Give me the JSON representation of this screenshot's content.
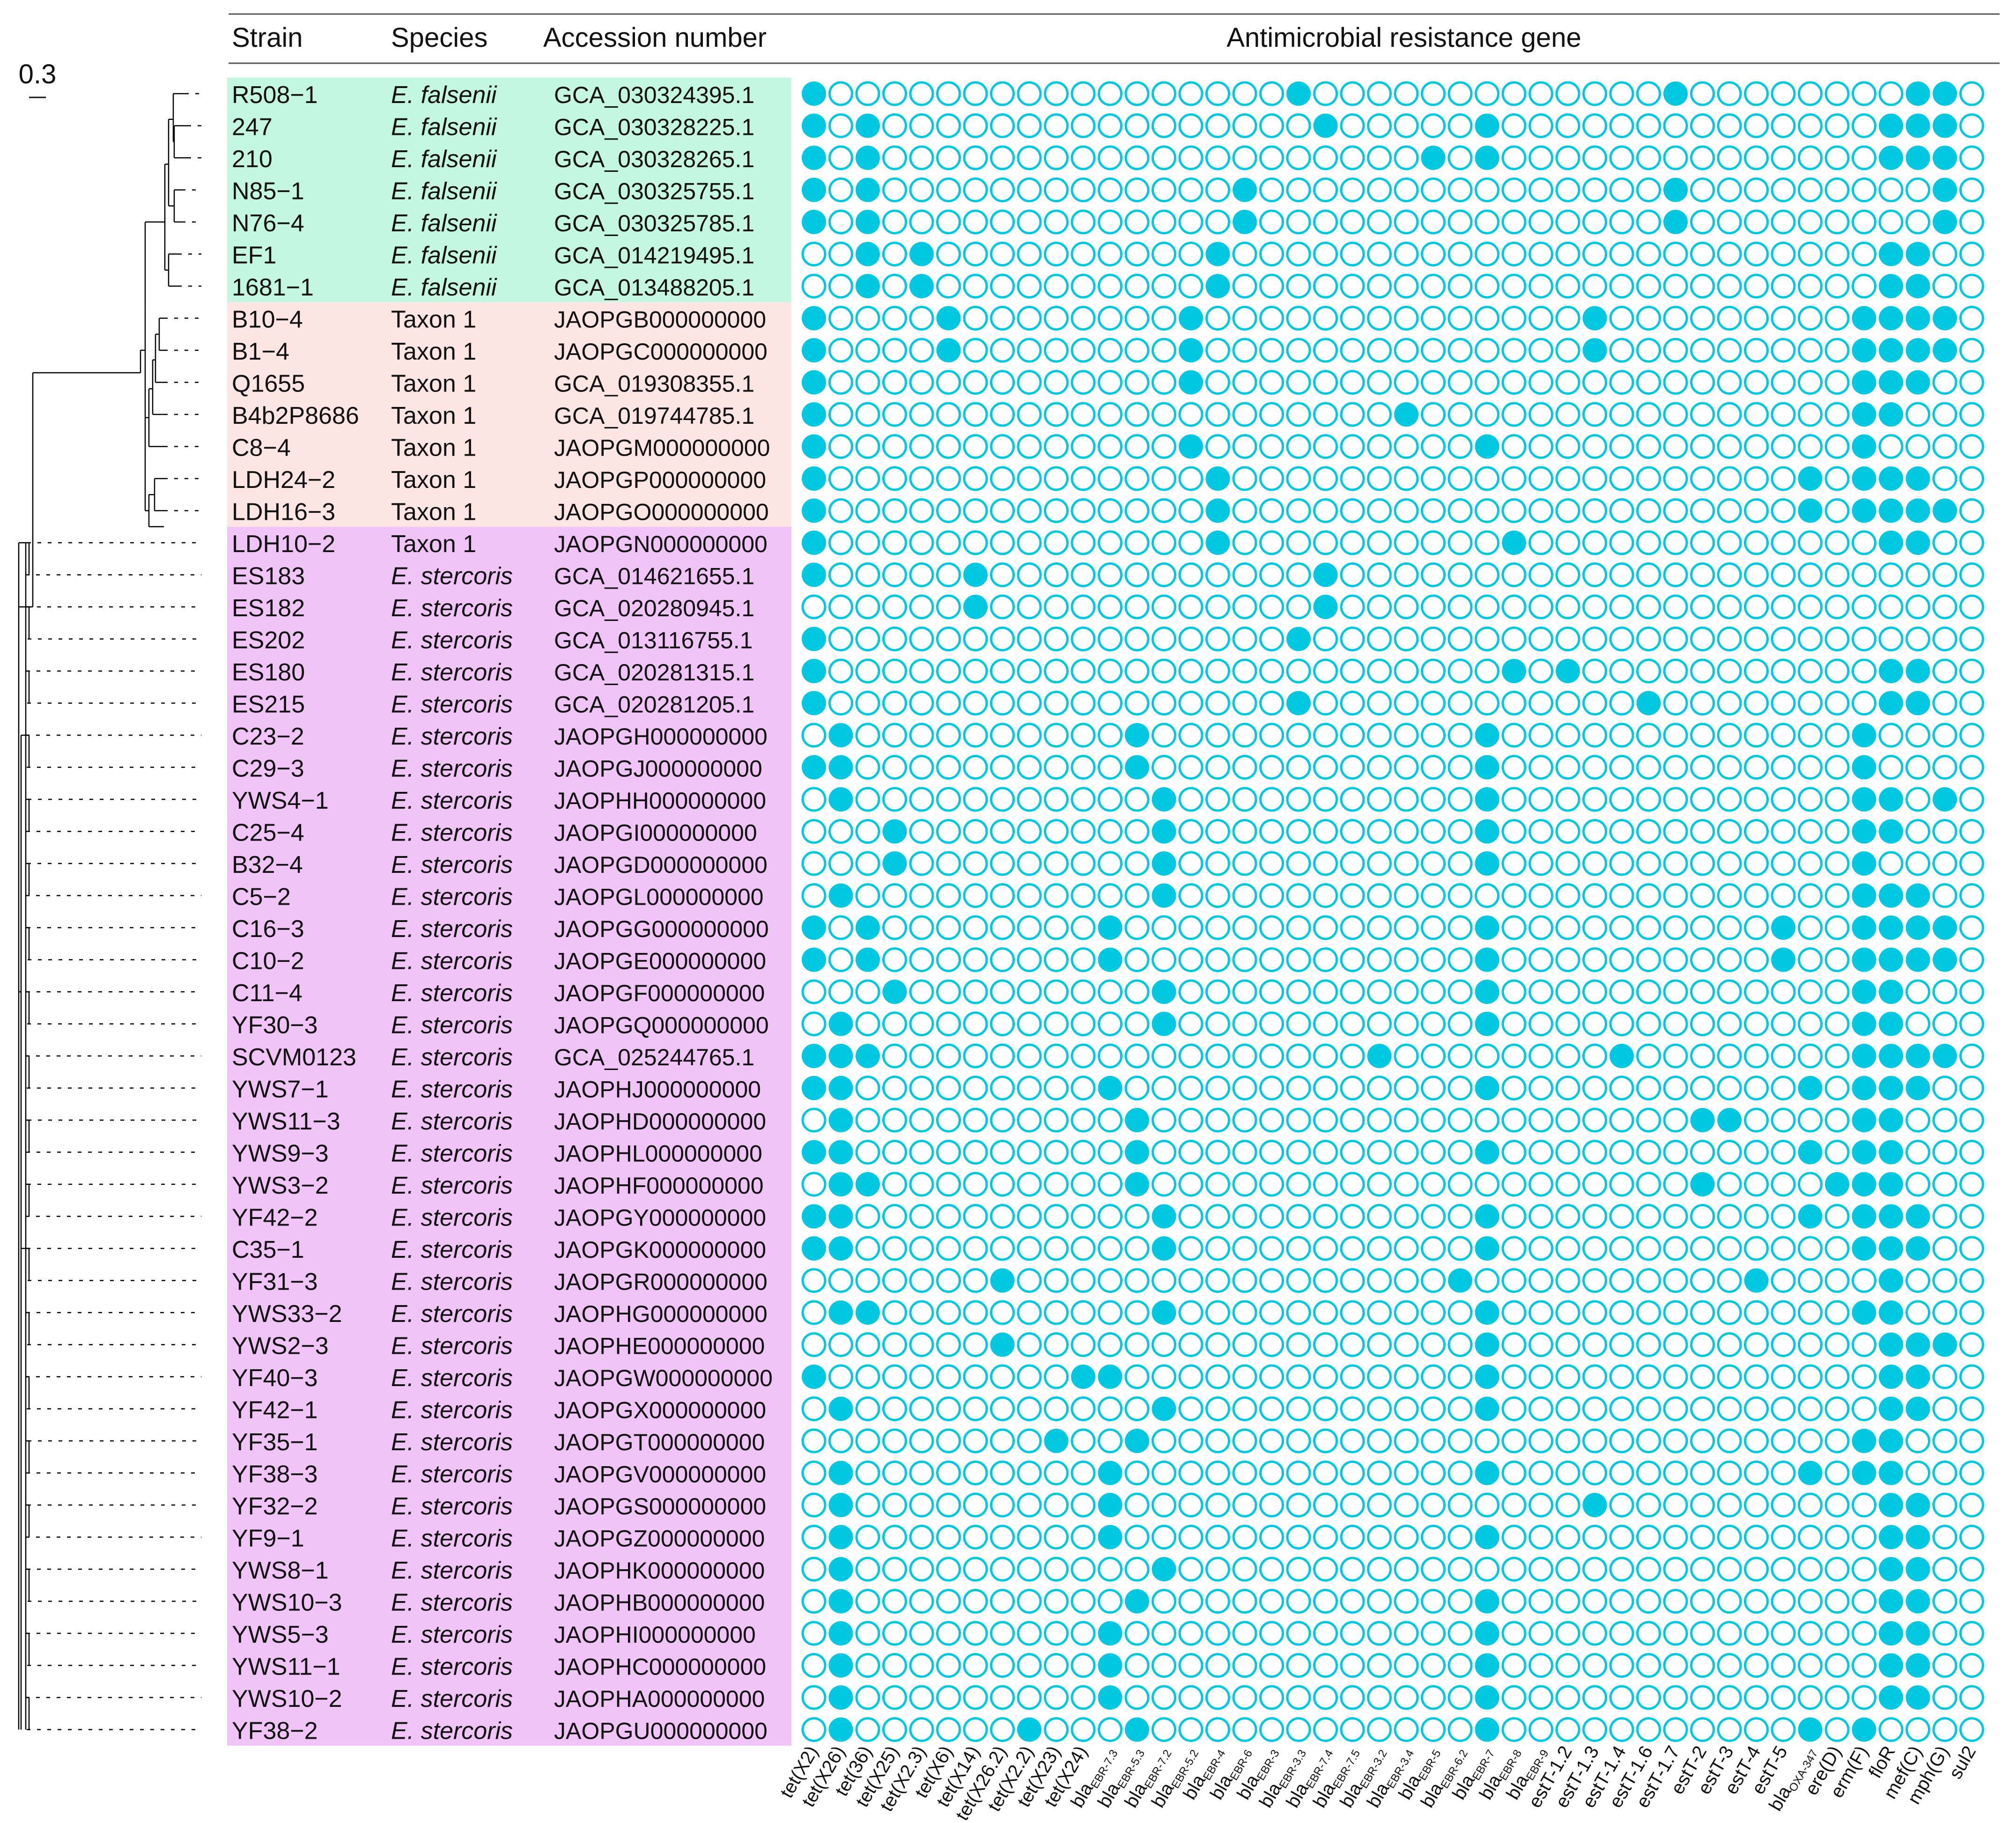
{
  "figure": {
    "scale_label": "0.3",
    "headers": {
      "strain": "Strain",
      "species": "Species",
      "accession": "Accession number",
      "genes": "Antimicrobial resistance gene"
    },
    "colors": {
      "filled": "#00C8E0",
      "ring": "#00C8E0",
      "falsenii_bg": "#C4F7E2",
      "taxon1_bg": "#FDE5E3",
      "stercoris_bg": "#F0C4F7",
      "tree": "#000000"
    },
    "genes": [
      {
        "pre": "tet(X2)",
        "sub": ""
      },
      {
        "pre": "tet(X26)",
        "sub": ""
      },
      {
        "pre": "tet(36)",
        "sub": ""
      },
      {
        "pre": "tet(X25)",
        "sub": ""
      },
      {
        "pre": "tet(X2.3)",
        "sub": ""
      },
      {
        "pre": "tet(X6)",
        "sub": ""
      },
      {
        "pre": "tet(X14)",
        "sub": ""
      },
      {
        "pre": "tet(X26.2)",
        "sub": ""
      },
      {
        "pre": "tet(X2.2)",
        "sub": ""
      },
      {
        "pre": "tet(X23)",
        "sub": ""
      },
      {
        "pre": "tet(X24)",
        "sub": ""
      },
      {
        "pre": "bla",
        "sub": "EBR-7.3"
      },
      {
        "pre": "bla",
        "sub": "EBR-5.3"
      },
      {
        "pre": "bla",
        "sub": "EBR-7.2"
      },
      {
        "pre": "bla",
        "sub": "EBR-5.2"
      },
      {
        "pre": "bla",
        "sub": "EBR-4"
      },
      {
        "pre": "bla",
        "sub": "EBR-6"
      },
      {
        "pre": "bla",
        "sub": "EBR-3"
      },
      {
        "pre": "bla",
        "sub": "EBR-3.3"
      },
      {
        "pre": "bla",
        "sub": "EBR-7.4"
      },
      {
        "pre": "bla",
        "sub": "EBR-7.5"
      },
      {
        "pre": "bla",
        "sub": "EBR-3.2"
      },
      {
        "pre": "bla",
        "sub": "EBR-3.4"
      },
      {
        "pre": "bla",
        "sub": "EBR-5"
      },
      {
        "pre": "bla",
        "sub": "EBR-6.2"
      },
      {
        "pre": "bla",
        "sub": "EBR-7"
      },
      {
        "pre": "bla",
        "sub": "EBR-8"
      },
      {
        "pre": "bla",
        "sub": "EBR-9"
      },
      {
        "pre": "estT-1.2",
        "sub": ""
      },
      {
        "pre": "estT-1.3",
        "sub": ""
      },
      {
        "pre": "estT-1.4",
        "sub": ""
      },
      {
        "pre": "estT-1.6",
        "sub": ""
      },
      {
        "pre": "estT-1.7",
        "sub": ""
      },
      {
        "pre": "estT-2",
        "sub": ""
      },
      {
        "pre": "estT-3",
        "sub": ""
      },
      {
        "pre": "estT-4",
        "sub": ""
      },
      {
        "pre": "estT-5",
        "sub": ""
      },
      {
        "pre": "bla",
        "sub": "OXA-347"
      },
      {
        "pre": "ere(D)",
        "sub": ""
      },
      {
        "pre": "erm(F)",
        "sub": ""
      },
      {
        "pre": "floR",
        "sub": ""
      },
      {
        "pre": "mef(C)",
        "sub": ""
      },
      {
        "pre": "mph(G)",
        "sub": ""
      },
      {
        "pre": "sul2",
        "sub": ""
      }
    ],
    "groups": [
      {
        "name": "falsenii",
        "first": 0,
        "last": 6
      },
      {
        "name": "taxon1",
        "first": 7,
        "last": 13
      },
      {
        "name": "stercoris",
        "first": 14,
        "last": 51
      }
    ],
    "rows": [
      {
        "strain": "R508−1",
        "species": "E. falsenii",
        "italic": true,
        "group": "falsenii",
        "acc": "GCA_030324395.1",
        "genes": [
          0,
          18,
          32,
          41,
          42
        ]
      },
      {
        "strain": "247",
        "species": "E. falsenii",
        "italic": true,
        "group": "falsenii",
        "acc": "GCA_030328225.1",
        "genes": [
          0,
          2,
          19,
          25,
          40,
          41,
          42
        ]
      },
      {
        "strain": "210",
        "species": "E. falsenii",
        "italic": true,
        "group": "falsenii",
        "acc": "GCA_030328265.1",
        "genes": [
          0,
          2,
          23,
          25,
          40,
          41,
          42
        ]
      },
      {
        "strain": "N85−1",
        "species": "E. falsenii",
        "italic": true,
        "group": "falsenii",
        "acc": "GCA_030325755.1",
        "genes": [
          0,
          2,
          16,
          32,
          42
        ]
      },
      {
        "strain": "N76−4",
        "species": "E. falsenii",
        "italic": true,
        "group": "falsenii",
        "acc": "GCA_030325785.1",
        "genes": [
          0,
          2,
          16,
          32,
          42
        ]
      },
      {
        "strain": "EF1",
        "species": "E. falsenii",
        "italic": true,
        "group": "falsenii",
        "acc": "GCA_014219495.1",
        "genes": [
          2,
          4,
          15,
          40,
          41
        ]
      },
      {
        "strain": "1681−1",
        "species": "E. falsenii",
        "italic": true,
        "group": "falsenii",
        "acc": "GCA_013488205.1",
        "genes": [
          2,
          4,
          15,
          40,
          41
        ]
      },
      {
        "strain": "B10−4",
        "species": "Taxon 1",
        "italic": false,
        "group": "taxon1",
        "acc": "JAOPGB000000000",
        "genes": [
          0,
          5,
          14,
          29,
          39,
          40,
          41,
          42
        ]
      },
      {
        "strain": "B1−4",
        "species": "Taxon 1",
        "italic": false,
        "group": "taxon1",
        "acc": "JAOPGC000000000",
        "genes": [
          0,
          5,
          14,
          29,
          39,
          40,
          41,
          42
        ]
      },
      {
        "strain": "Q1655",
        "species": "Taxon 1",
        "italic": false,
        "group": "taxon1",
        "acc": "GCA_019308355.1",
        "genes": [
          0,
          14,
          39,
          40,
          41
        ]
      },
      {
        "strain": "B4b2P8686",
        "species": "Taxon 1",
        "italic": false,
        "group": "taxon1",
        "acc": "GCA_019744785.1",
        "genes": [
          0,
          22,
          39,
          40
        ]
      },
      {
        "strain": "C8−4",
        "species": "Taxon 1",
        "italic": false,
        "group": "taxon1",
        "acc": "JAOPGM000000000",
        "genes": [
          0,
          14,
          25,
          39
        ]
      },
      {
        "strain": "LDH24−2",
        "species": "Taxon 1",
        "italic": false,
        "group": "taxon1",
        "acc": "JAOPGP000000000",
        "genes": [
          0,
          15,
          37,
          39,
          40,
          41
        ]
      },
      {
        "strain": "LDH16−3",
        "species": "Taxon 1",
        "italic": false,
        "group": "taxon1",
        "acc": "JAOPGO000000000",
        "genes": [
          0,
          15,
          37,
          39,
          40,
          41,
          42
        ]
      },
      {
        "strain": "LDH10−2",
        "species": "Taxon 1",
        "italic": false,
        "group": "taxon1",
        "acc": "JAOPGN000000000",
        "genes": [
          0,
          15,
          26,
          40,
          41
        ]
      },
      {
        "strain": "ES183",
        "species": "E. stercoris",
        "italic": true,
        "group": "stercoris",
        "acc": "GCA_014621655.1",
        "genes": [
          0,
          6,
          19
        ]
      },
      {
        "strain": "ES182",
        "species": "E. stercoris",
        "italic": true,
        "group": "stercoris",
        "acc": "GCA_020280945.1",
        "genes": [
          6,
          19
        ]
      },
      {
        "strain": "ES202",
        "species": "E. stercoris",
        "italic": true,
        "group": "stercoris",
        "acc": "GCA_013116755.1",
        "genes": [
          0,
          18
        ]
      },
      {
        "strain": "ES180",
        "species": "E. stercoris",
        "italic": true,
        "group": "stercoris",
        "acc": "GCA_020281315.1",
        "genes": [
          0,
          26,
          28,
          40,
          41
        ]
      },
      {
        "strain": "ES215",
        "species": "E. stercoris",
        "italic": true,
        "group": "stercoris",
        "acc": "GCA_020281205.1",
        "genes": [
          0,
          18,
          31,
          40,
          41
        ]
      },
      {
        "strain": "C23−2",
        "species": "E. stercoris",
        "italic": true,
        "group": "stercoris",
        "acc": "JAOPGH000000000",
        "genes": [
          1,
          12,
          25,
          39
        ]
      },
      {
        "strain": "C29−3",
        "species": "E. stercoris",
        "italic": true,
        "group": "stercoris",
        "acc": "JAOPGJ000000000",
        "genes": [
          0,
          1,
          12,
          25,
          39
        ]
      },
      {
        "strain": "YWS4−1",
        "species": "E. stercoris",
        "italic": true,
        "group": "stercoris",
        "acc": "JAOPHH000000000",
        "genes": [
          1,
          13,
          25,
          39,
          40,
          42
        ]
      },
      {
        "strain": "C25−4",
        "species": "E. stercoris",
        "italic": true,
        "group": "stercoris",
        "acc": "JAOPGI000000000",
        "genes": [
          3,
          13,
          25,
          39,
          40
        ]
      },
      {
        "strain": "B32−4",
        "species": "E. stercoris",
        "italic": true,
        "group": "stercoris",
        "acc": "JAOPGD000000000",
        "genes": [
          3,
          13,
          25,
          39
        ]
      },
      {
        "strain": "C5−2",
        "species": "E. stercoris",
        "italic": true,
        "group": "stercoris",
        "acc": "JAOPGL000000000",
        "genes": [
          1,
          13,
          39,
          40,
          41
        ]
      },
      {
        "strain": "C16−3",
        "species": "E. stercoris",
        "italic": true,
        "group": "stercoris",
        "acc": "JAOPGG000000000",
        "genes": [
          0,
          2,
          11,
          25,
          36,
          39,
          40,
          41,
          42
        ]
      },
      {
        "strain": "C10−2",
        "species": "E. stercoris",
        "italic": true,
        "group": "stercoris",
        "acc": "JAOPGE000000000",
        "genes": [
          0,
          2,
          11,
          25,
          36,
          39,
          40,
          41,
          42
        ]
      },
      {
        "strain": "C11−4",
        "species": "E. stercoris",
        "italic": true,
        "group": "stercoris",
        "acc": "JAOPGF000000000",
        "genes": [
          3,
          13,
          25,
          39,
          40
        ]
      },
      {
        "strain": "YF30−3",
        "species": "E. stercoris",
        "italic": true,
        "group": "stercoris",
        "acc": "JAOPGQ000000000",
        "genes": [
          1,
          13,
          25,
          39,
          40
        ]
      },
      {
        "strain": "SCVM0123",
        "species": "E. stercoris",
        "italic": true,
        "group": "stercoris",
        "acc": "GCA_025244765.1",
        "genes": [
          0,
          1,
          2,
          21,
          30,
          39,
          40,
          41,
          42
        ]
      },
      {
        "strain": "YWS7−1",
        "species": "E. stercoris",
        "italic": true,
        "group": "stercoris",
        "acc": "JAOPHJ000000000",
        "genes": [
          0,
          1,
          11,
          25,
          37,
          39,
          40,
          41
        ]
      },
      {
        "strain": "YWS11−3",
        "species": "E. stercoris",
        "italic": true,
        "group": "stercoris",
        "acc": "JAOPHD000000000",
        "genes": [
          1,
          12,
          33,
          34,
          39,
          40
        ]
      },
      {
        "strain": "YWS9−3",
        "species": "E. stercoris",
        "italic": true,
        "group": "stercoris",
        "acc": "JAOPHL000000000",
        "genes": [
          0,
          1,
          12,
          25,
          37,
          39,
          40
        ]
      },
      {
        "strain": "YWS3−2",
        "species": "E. stercoris",
        "italic": true,
        "group": "stercoris",
        "acc": "JAOPHF000000000",
        "genes": [
          1,
          2,
          12,
          33,
          38,
          39,
          40
        ]
      },
      {
        "strain": "YF42−2",
        "species": "E. stercoris",
        "italic": true,
        "group": "stercoris",
        "acc": "JAOPGY000000000",
        "genes": [
          0,
          1,
          13,
          25,
          37,
          39,
          40,
          41
        ]
      },
      {
        "strain": "C35−1",
        "species": "E. stercoris",
        "italic": true,
        "group": "stercoris",
        "acc": "JAOPGK000000000",
        "genes": [
          0,
          1,
          13,
          25,
          39,
          40,
          41
        ]
      },
      {
        "strain": "YF31−3",
        "species": "E. stercoris",
        "italic": true,
        "group": "stercoris",
        "acc": "JAOPGR000000000",
        "genes": [
          7,
          24,
          35,
          40
        ]
      },
      {
        "strain": "YWS33−2",
        "species": "E. stercoris",
        "italic": true,
        "group": "stercoris",
        "acc": "JAOPHG000000000",
        "genes": [
          1,
          2,
          13,
          25,
          39,
          40
        ]
      },
      {
        "strain": "YWS2−3",
        "species": "E. stercoris",
        "italic": true,
        "group": "stercoris",
        "acc": "JAOPHE000000000",
        "genes": [
          7,
          25,
          40,
          41,
          42
        ]
      },
      {
        "strain": "YF40−3",
        "species": "E. stercoris",
        "italic": true,
        "group": "stercoris",
        "acc": "JAOPGW000000000",
        "genes": [
          0,
          10,
          11,
          25,
          40,
          41
        ]
      },
      {
        "strain": "YF42−1",
        "species": "E. stercoris",
        "italic": true,
        "group": "stercoris",
        "acc": "JAOPGX000000000",
        "genes": [
          1,
          13,
          25,
          40,
          41
        ]
      },
      {
        "strain": "YF35−1",
        "species": "E. stercoris",
        "italic": true,
        "group": "stercoris",
        "acc": "JAOPGT000000000",
        "genes": [
          9,
          12,
          39,
          40
        ]
      },
      {
        "strain": "YF38−3",
        "species": "E. stercoris",
        "italic": true,
        "group": "stercoris",
        "acc": "JAOPGV000000000",
        "genes": [
          1,
          11,
          25,
          37,
          39,
          40
        ]
      },
      {
        "strain": "YF32−2",
        "species": "E. stercoris",
        "italic": true,
        "group": "stercoris",
        "acc": "JAOPGS000000000",
        "genes": [
          1,
          11,
          29,
          40,
          41
        ]
      },
      {
        "strain": "YF9−1",
        "species": "E. stercoris",
        "italic": true,
        "group": "stercoris",
        "acc": "JAOPGZ000000000",
        "genes": [
          1,
          11,
          25,
          40,
          41
        ]
      },
      {
        "strain": "YWS8−1",
        "species": "E. stercoris",
        "italic": true,
        "group": "stercoris",
        "acc": "JAOPHK000000000",
        "genes": [
          1,
          13,
          40,
          41
        ]
      },
      {
        "strain": "YWS10−3",
        "species": "E. stercoris",
        "italic": true,
        "group": "stercoris",
        "acc": "JAOPHB000000000",
        "genes": [
          1,
          12,
          25,
          40,
          41
        ]
      },
      {
        "strain": "YWS5−3",
        "species": "E. stercoris",
        "italic": true,
        "group": "stercoris",
        "acc": "JAOPHI000000000",
        "genes": [
          1,
          11,
          25,
          40,
          41
        ]
      },
      {
        "strain": "YWS11−1",
        "species": "E. stercoris",
        "italic": true,
        "group": "stercoris",
        "acc": "JAOPHC000000000",
        "genes": [
          1,
          11,
          25,
          40,
          41
        ]
      },
      {
        "strain": "YWS10−2",
        "species": "E. stercoris",
        "italic": true,
        "group": "stercoris",
        "acc": "JAOPHA000000000",
        "genes": [
          1,
          11,
          25,
          40,
          41
        ]
      },
      {
        "strain": "YF38−2",
        "species": "E. stercoris",
        "italic": true,
        "group": "stercoris",
        "acc": "JAOPGU000000000",
        "genes": [
          1,
          8,
          12,
          25,
          37,
          39
        ]
      }
    ]
  }
}
